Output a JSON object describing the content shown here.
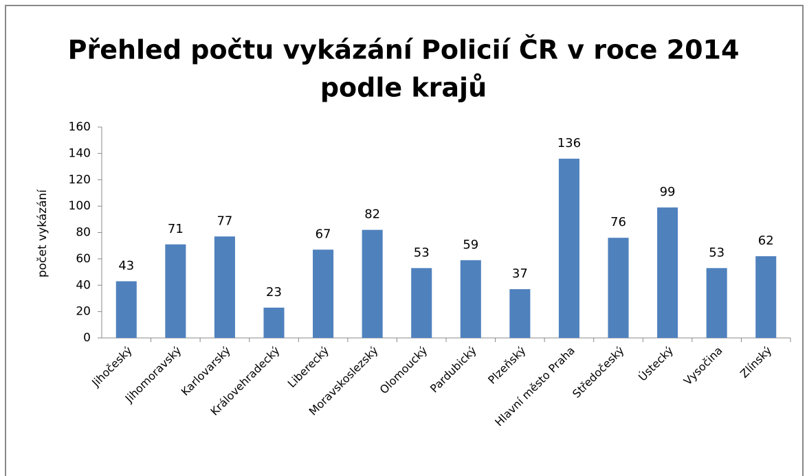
{
  "chart_data": {
    "type": "bar",
    "title": [
      "Přehled počtu vykázání Policií ČR v roce 2014",
      "podle krajů"
    ],
    "y_label": "počet vykázání",
    "categories": [
      "Jihočeský",
      "Jihomoravský",
      "Karlovarský",
      "Královehradecký",
      "Liberecký",
      "Moravskoslezský",
      "Olomoucký",
      "Pardubický",
      "Plzeňský",
      "Hlavní město Praha",
      "Středočeský",
      "Ústecký",
      "Vysočina",
      "Zlínský"
    ],
    "values": [
      43,
      71,
      77,
      23,
      67,
      82,
      53,
      59,
      37,
      136,
      76,
      99,
      53,
      62
    ],
    "color": "#4f81bd",
    "ylim": [
      0,
      160
    ],
    "yticks": [
      0,
      20,
      40,
      60,
      80,
      100,
      120,
      140,
      160
    ],
    "grid": false
  }
}
